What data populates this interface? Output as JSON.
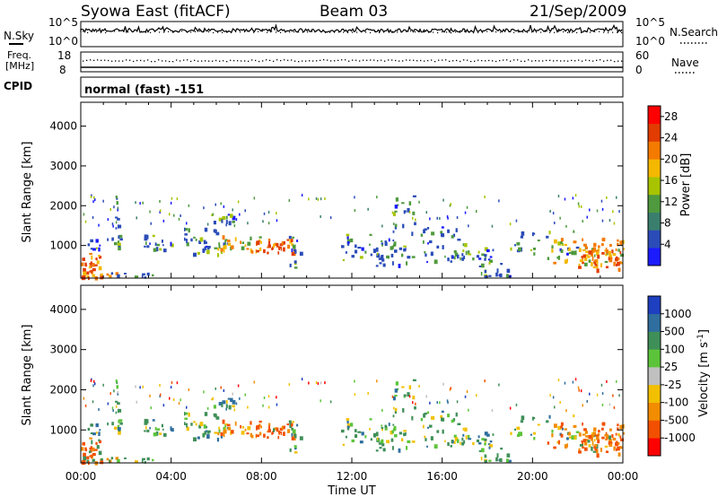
{
  "header": {
    "station": "Syowa East (fitACF)",
    "beam": "Beam 03",
    "date": "21/Sep/2009"
  },
  "noise_panel": {
    "left_label": "N.Sky",
    "right_label": "N.Search",
    "left_ticks": [
      "10^5",
      "10^0"
    ],
    "right_ticks": [
      "10^5",
      "10^0"
    ]
  },
  "freq_panel": {
    "left_label_line1": "Freq.",
    "left_label_line2": "[MHz]",
    "right_label": "Nave",
    "left_ticks": [
      "18",
      "8"
    ],
    "right_ticks": [
      "60",
      "0"
    ],
    "cpid_label": "CPID",
    "program": "normal (fast) -151"
  },
  "chart_data": [
    {
      "type": "heatmap",
      "name": "power",
      "ylabel": "Slant Range [km]",
      "ylim": [
        180,
        4600
      ],
      "yticks": [
        1000,
        2000,
        3000,
        4000
      ],
      "xlim": [
        0,
        24
      ],
      "colorbar": {
        "label": "Power [dB]",
        "ticks": [
          "4",
          "8",
          "12",
          "16",
          "20",
          "24",
          "28"
        ],
        "range": [
          0,
          30
        ],
        "colors": [
          "#1b1bff",
          "#2b4cb8",
          "#3a7f6e",
          "#4f9a3e",
          "#a8c400",
          "#f4b800",
          "#f47a00",
          "#e23c00",
          "#ff0000"
        ]
      }
    },
    {
      "type": "heatmap",
      "name": "velocity",
      "ylabel": "Slant Range [km]",
      "ylim": [
        180,
        4600
      ],
      "yticks": [
        1000,
        2000,
        3000,
        4000
      ],
      "xlim": [
        0,
        24
      ],
      "xticks": [
        "00:00",
        "04:00",
        "08:00",
        "12:00",
        "16:00",
        "20:00",
        "00:00"
      ],
      "xlabel": "Time UT",
      "colorbar": {
        "label": "Velocity [m s^-1]",
        "ticks": [
          "1000",
          "500",
          "100",
          "25",
          "-25",
          "-100",
          "-500",
          "-1000"
        ],
        "colors": [
          "#1e3fbf",
          "#2f6e9e",
          "#3f8f58",
          "#5cc43a",
          "#c0c0c0",
          "#f2c000",
          "#f28c00",
          "#f25000",
          "#ff0000"
        ]
      }
    }
  ]
}
